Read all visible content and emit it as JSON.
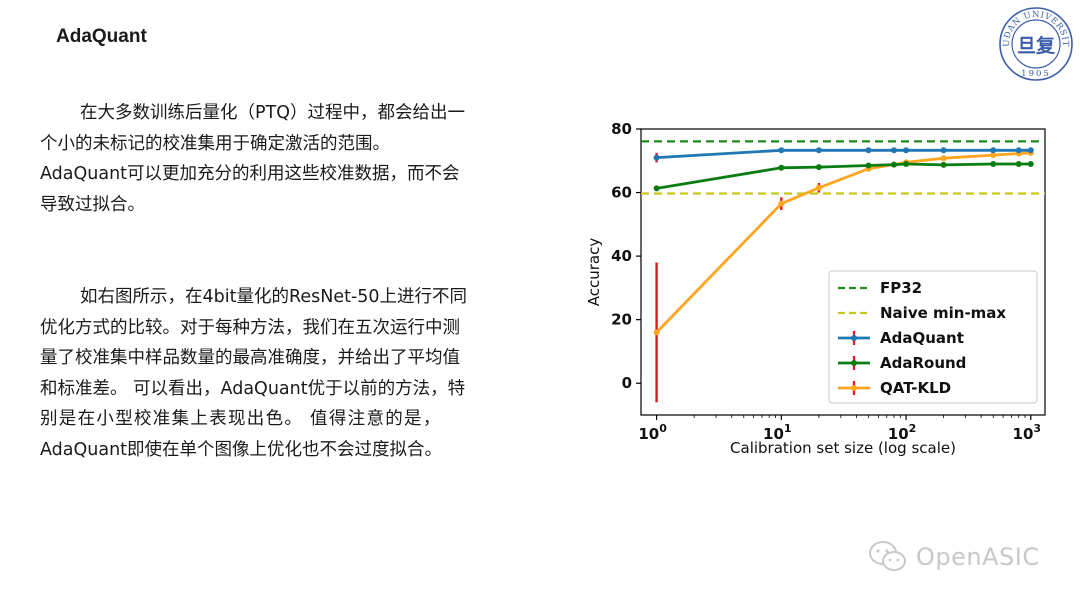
{
  "slide": {
    "title": "AdaQuant",
    "paragraph1": [
      "在大多数训练后量化（PTQ）过程中，都会给出一",
      "个小的未标记的校准集用于确定激活的范围。",
      "AdaQuant可以更加充分的利用这些校准数据，而不会",
      "导致过拟合。"
    ],
    "paragraph2": [
      "如右图所示，在4bit量化的ResNet-50上进行不同",
      "优化方式的比较。对于每种方法，我们在五次运行中测",
      "量了校准集中样品数量的最高准确度，并给出了平均值",
      "和标准差。 可以看出，AdaQuant优于以前的方法，特",
      "别是在小型校准集上表现出色。 值得注意的是，",
      "AdaQuant即使在单个图像上优化也不会过度拟合。"
    ]
  },
  "logo": {
    "upper_text": "FUDAN UNIVERSITY",
    "year": "1905",
    "center_glyph": "旦复"
  },
  "watermark": {
    "text": "OpenASIC",
    "icon": "wechat-icon"
  },
  "colors": {
    "adaquant": "#1f77b4",
    "adaround": "#0a7d12",
    "qat": "#ffa51f",
    "fp32": "#1c8a1c",
    "naive": "#c8c81a",
    "error": "#e8141e"
  },
  "chart_data": {
    "type": "line",
    "xscale": "log",
    "xlabel": "Calibration set size (log scale)",
    "ylabel": "Accuracy",
    "xlim": [
      0.75,
      1300
    ],
    "ylim": [
      -10,
      80
    ],
    "xticks": [
      {
        "value": 1,
        "base": "10",
        "exp": "0"
      },
      {
        "value": 10,
        "base": "10",
        "exp": "1"
      },
      {
        "value": 100,
        "base": "10",
        "exp": "2"
      },
      {
        "value": 1000,
        "base": "10",
        "exp": "3"
      }
    ],
    "yticks": [
      0,
      20,
      40,
      60,
      80
    ],
    "legend_position": "lower-right",
    "reference_lines": [
      {
        "name": "FP32",
        "y": 76.1,
        "style": "dashed",
        "color": "#1c8a1c"
      },
      {
        "name": "Naive min-max",
        "y": 59.7,
        "style": "dashed",
        "color": "#c8c81a"
      }
    ],
    "series": [
      {
        "name": "AdaQuant",
        "color": "#1f77b4",
        "x": [
          1,
          10,
          20,
          50,
          80,
          100,
          200,
          500,
          800,
          1000
        ],
        "y": [
          71.0,
          73.3,
          73.3,
          73.3,
          73.3,
          73.3,
          73.3,
          73.3,
          73.3,
          73.3
        ],
        "err": [
          1.5,
          0.3,
          0.2,
          0.2,
          0.2,
          0.2,
          0.2,
          0.2,
          0.2,
          0.2
        ]
      },
      {
        "name": "AdaRound",
        "color": "#0a7d12",
        "x": [
          1,
          10,
          20,
          50,
          80,
          100,
          200,
          500,
          800,
          1000
        ],
        "y": [
          61.3,
          67.8,
          68.0,
          68.5,
          68.8,
          69.0,
          68.7,
          69.0,
          69.0,
          69.0
        ],
        "err": [
          0.8,
          0.4,
          0.3,
          0.3,
          0.3,
          0.3,
          0.3,
          0.3,
          0.3,
          0.3
        ]
      },
      {
        "name": "QAT-KLD",
        "color": "#ffa51f",
        "x": [
          1,
          10,
          20,
          50,
          80,
          100,
          200,
          500,
          800,
          1000
        ],
        "y": [
          16.0,
          56.5,
          61.5,
          67.5,
          68.8,
          69.5,
          70.8,
          71.8,
          72.3,
          72.5
        ],
        "err": [
          22.0,
          2.0,
          1.5,
          0.8,
          0.5,
          0.5,
          0.5,
          0.4,
          0.4,
          0.4
        ]
      }
    ]
  }
}
